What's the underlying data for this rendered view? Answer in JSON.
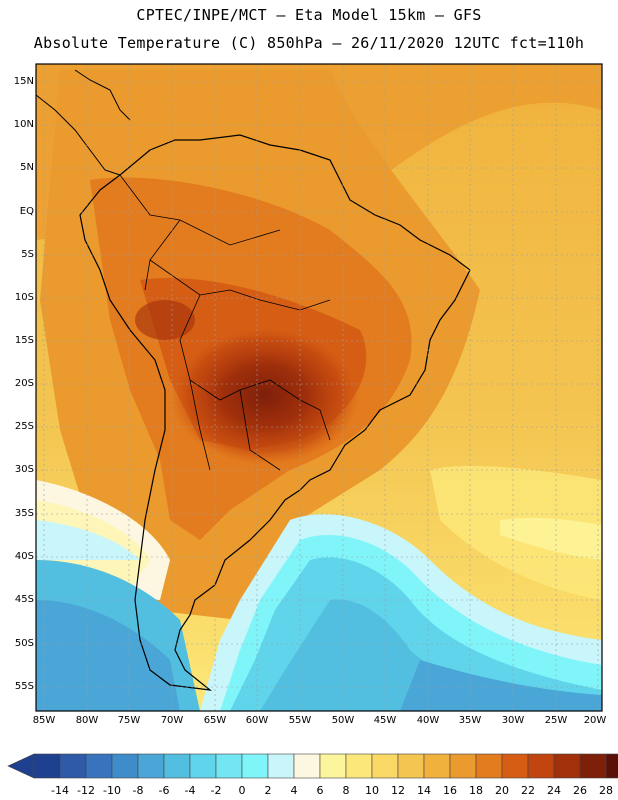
{
  "header": {
    "line1": "CPTEC/INPE/MCT –  Eta Model 15km – GFS",
    "line2": "Absolute Temperature (C) 850hPa – 26/11/2020 12UTC fct=110h"
  },
  "map": {
    "lat_ticks": [
      "15N",
      "10N",
      "5N",
      "EQ",
      "5S",
      "10S",
      "15S",
      "20S",
      "25S",
      "30S",
      "35S",
      "40S",
      "45S",
      "50S",
      "55S"
    ],
    "lon_ticks": [
      "85W",
      "80W",
      "75W",
      "70W",
      "65W",
      "60W",
      "55W",
      "50W",
      "45W",
      "40W",
      "35W",
      "30W",
      "25W",
      "20W"
    ],
    "grid": "dotted"
  },
  "colorbar": {
    "labels": [
      "-14",
      "-12",
      "-10",
      "-8",
      "-6",
      "-4",
      "-2",
      "0",
      "2",
      "4",
      "6",
      "8",
      "10",
      "12",
      "14",
      "16",
      "18",
      "20",
      "22",
      "24",
      "26",
      "28"
    ],
    "colors": [
      "#1f3f8f",
      "#2e5aa8",
      "#3a73bd",
      "#3f8ccb",
      "#4aa6d6",
      "#52bfe0",
      "#5fd4ea",
      "#72e6f2",
      "#7ff5f9",
      "#c8f6fb",
      "#fdf7e1",
      "#fdf59c",
      "#fce87a",
      "#f9d865",
      "#f4c551",
      "#f0b23c",
      "#eb9a2e",
      "#e37c1e",
      "#d55d14",
      "#c1450e",
      "#a1300b",
      "#7e1f0a",
      "#5a1008"
    ],
    "under_color": "#1f3f8f",
    "over_color": "#5a1008"
  }
}
